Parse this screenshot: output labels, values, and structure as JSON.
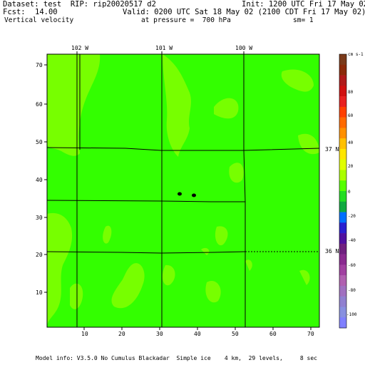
{
  "header": {
    "dataset": "Dataset: test  RIP: rip20020517 d2",
    "init": "Init: 1200 UTC Fri 17 May 02",
    "fcst_label": "Fcst:",
    "fcst_value": "14.00",
    "valid": "Valid: 0200 UTC Sat 18 May 02 (2100 CDT Fri 17 May 02)",
    "field": "Vertical velocity",
    "pressure": "at pressure =  700 hPa",
    "smoothing": "sm= 1"
  },
  "map": {
    "background_color": "#33ff00",
    "highlight_color": "#77ff00",
    "lon_labels": [
      "102 W",
      "101 W",
      "100 W"
    ],
    "lat_labels": [
      "37 N",
      "36 N"
    ],
    "x_ticks": [
      "10",
      "20",
      "30",
      "40",
      "50",
      "60",
      "70"
    ],
    "y_ticks": [
      "70",
      "60",
      "50",
      "40",
      "30",
      "20",
      "10"
    ]
  },
  "colorbar": {
    "units": "cm s-1",
    "labels": [
      "80",
      "60",
      "40",
      "20",
      "0",
      "-20",
      "-40",
      "-60",
      "-80",
      "-100"
    ],
    "colors": [
      "#7a3a1a",
      "#8b2a0a",
      "#b01a1a",
      "#d01010",
      "#e82020",
      "#ff4000",
      "#ff6a00",
      "#ff9000",
      "#ffc000",
      "#ffe600",
      "#e0ff00",
      "#aaff00",
      "#55ff00",
      "#22dd22",
      "#10aa40",
      "#0070ff",
      "#2a20d0",
      "#5010a0",
      "#702080",
      "#8a2a90",
      "#a040a0",
      "#b060b0",
      "#a070c0",
      "#9080d0",
      "#8890e0",
      "#8080ff"
    ]
  },
  "footer": {
    "model_info": "Model info: V3.5.0 No Cumulus Blackadar  Simple ice    4 km,  29 levels,     8 sec"
  }
}
